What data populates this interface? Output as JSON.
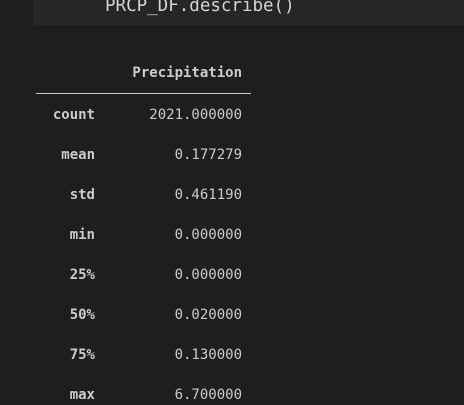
{
  "code": "PRCP_DF.describe()",
  "table": {
    "column_header": "Precipitation",
    "rows": [
      {
        "label": "count",
        "value": "2021.000000"
      },
      {
        "label": "mean",
        "value": "0.177279"
      },
      {
        "label": "std",
        "value": "0.461190"
      },
      {
        "label": "min",
        "value": "0.000000"
      },
      {
        "label": "25%",
        "value": "0.000000"
      },
      {
        "label": "50%",
        "value": "0.020000"
      },
      {
        "label": "75%",
        "value": "0.130000"
      },
      {
        "label": "max",
        "value": "6.700000"
      }
    ]
  }
}
